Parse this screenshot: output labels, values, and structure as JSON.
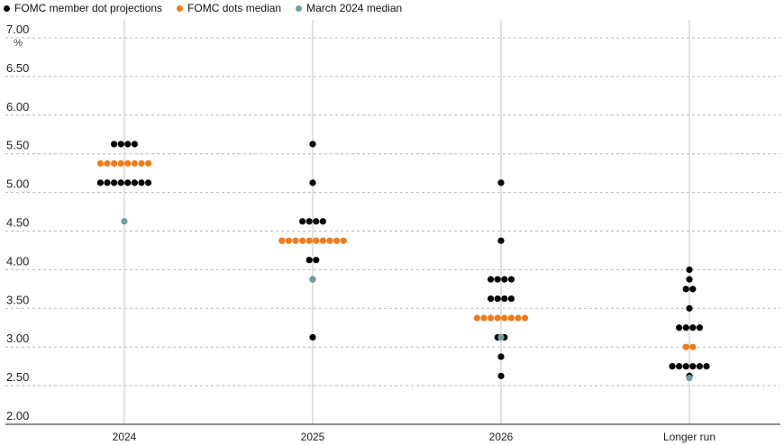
{
  "chart_data": {
    "type": "scatter",
    "title": "",
    "xlabel": "",
    "ylabel": "",
    "unit": "%",
    "ylim": [
      2.0,
      7.0
    ],
    "yticks": [
      "7.00",
      "6.50",
      "6.00",
      "5.50",
      "5.00",
      "4.50",
      "4.00",
      "3.50",
      "3.00",
      "2.50",
      "2.00"
    ],
    "categories": [
      "2024",
      "2025",
      "2026",
      "Longer run"
    ],
    "grid": true,
    "legend_position": "top-left",
    "series": [
      {
        "name": "FOMC member dot projections",
        "color": "#000000",
        "points": [
          {
            "category": "2024",
            "y": 5.625,
            "count": 4
          },
          {
            "category": "2024",
            "y": 5.125,
            "count": 8
          },
          {
            "category": "2025",
            "y": 5.625,
            "count": 1
          },
          {
            "category": "2025",
            "y": 5.125,
            "count": 1
          },
          {
            "category": "2025",
            "y": 4.625,
            "count": 4
          },
          {
            "category": "2025",
            "y": 4.125,
            "count": 2
          },
          {
            "category": "2025",
            "y": 3.875,
            "count": 1
          },
          {
            "category": "2025",
            "y": 3.125,
            "count": 1
          },
          {
            "category": "2026",
            "y": 5.125,
            "count": 1
          },
          {
            "category": "2026",
            "y": 4.375,
            "count": 1
          },
          {
            "category": "2026",
            "y": 3.875,
            "count": 4
          },
          {
            "category": "2026",
            "y": 3.625,
            "count": 4
          },
          {
            "category": "2026",
            "y": 3.125,
            "count": 2
          },
          {
            "category": "2026",
            "y": 2.875,
            "count": 1
          },
          {
            "category": "2026",
            "y": 2.625,
            "count": 1
          },
          {
            "category": "Longer run",
            "y": 4.0,
            "count": 1
          },
          {
            "category": "Longer run",
            "y": 3.875,
            "count": 1
          },
          {
            "category": "Longer run",
            "y": 3.75,
            "count": 2
          },
          {
            "category": "Longer run",
            "y": 3.5,
            "count": 1
          },
          {
            "category": "Longer run",
            "y": 3.25,
            "count": 4
          },
          {
            "category": "Longer run",
            "y": 2.75,
            "count": 6
          },
          {
            "category": "Longer run",
            "y": 2.625,
            "count": 1
          }
        ]
      },
      {
        "name": "FOMC dots median",
        "color": "#f07b18",
        "points": [
          {
            "category": "2024",
            "y": 5.375,
            "count": 8
          },
          {
            "category": "2025",
            "y": 4.375,
            "count": 10
          },
          {
            "category": "2026",
            "y": 3.375,
            "count": 8
          },
          {
            "category": "Longer run",
            "y": 3.0,
            "count": 2
          }
        ]
      },
      {
        "name": "March 2024 median",
        "color": "#6e9ea4",
        "points": [
          {
            "category": "2024",
            "y": 4.625,
            "count": 1
          },
          {
            "category": "2025",
            "y": 3.875,
            "count": 1
          },
          {
            "category": "2026",
            "y": 3.125,
            "count": 1
          },
          {
            "category": "Longer run",
            "y": 2.6,
            "count": 1
          }
        ]
      }
    ]
  }
}
